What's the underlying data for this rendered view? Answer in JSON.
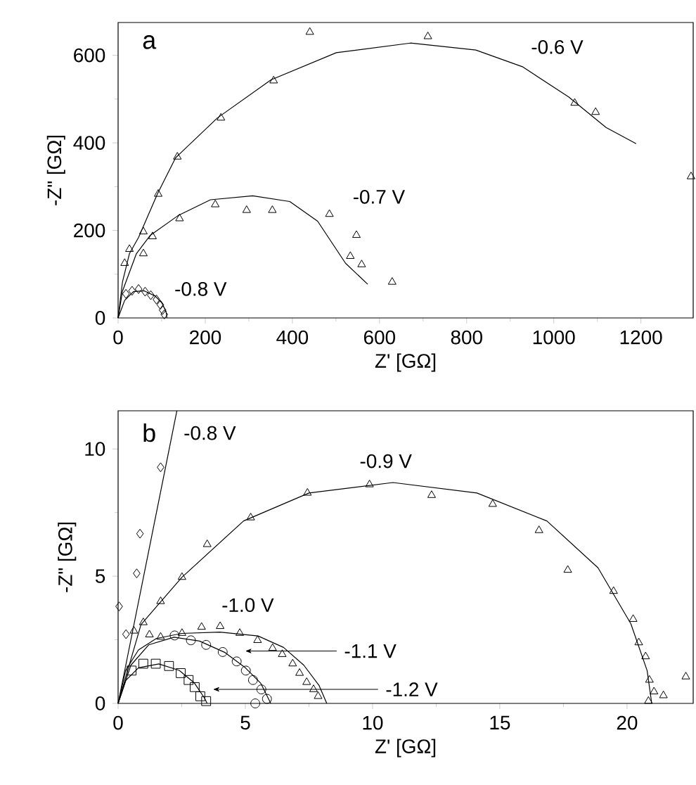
{
  "chart_data": [
    {
      "type": "scatter",
      "xlabel": "Z'  [GΩ]",
      "ylabel": "-Z\" [GΩ]",
      "xlim": [
        0,
        1320
      ],
      "ylim": [
        0,
        675
      ],
      "xticks": [
        0,
        200,
        400,
        600,
        800,
        1000,
        1200
      ],
      "yticks": [
        0,
        200,
        400,
        600
      ],
      "annotations": [
        "a",
        "-0.6 V",
        "-0.7 V",
        "-0.8 V"
      ],
      "series": [
        {
          "marker": "triangle",
          "color": "#000000",
          "x": [
            15,
            26,
            58,
            92,
            136,
            236,
            357,
            440,
            711,
            1048,
            1096,
            1315
          ],
          "values": [
            125,
            157,
            197,
            283,
            368,
            457,
            542,
            653,
            643,
            491,
            470,
            323
          ]
        },
        {
          "marker": "triangle",
          "color": "#000000",
          "x": [
            58,
            79,
            141,
            223,
            295,
            354,
            485,
            547,
            533,
            559,
            629
          ],
          "values": [
            147,
            186,
            227,
            259,
            246,
            246,
            237,
            189,
            141,
            122,
            82
          ]
        },
        {
          "marker": "diamond",
          "color": "#000000",
          "x": [
            18,
            32,
            47,
            62,
            75,
            88,
            97,
            102,
            106
          ],
          "values": [
            55,
            62,
            66,
            60,
            52,
            42,
            30,
            18,
            8
          ]
        },
        {
          "type": "line",
          "marker": "none",
          "color": "#000000",
          "x": [
            0,
            10,
            26,
            47,
            90,
            132,
            228,
            351,
            501,
            671,
            821,
            928,
            1034,
            1120,
            1189
          ],
          "values": [
            0,
            82,
            147,
            184,
            283,
            366,
            457,
            544,
            606,
            628,
            612,
            574,
            505,
            435,
            398
          ]
        },
        {
          "type": "line",
          "marker": "none",
          "color": "#000000",
          "x": [
            0,
            10,
            42,
            74,
            138,
            212,
            309,
            394,
            458,
            522,
            573
          ],
          "values": [
            0,
            61,
            147,
            189,
            234,
            270,
            279,
            266,
            221,
            125,
            77
          ]
        },
        {
          "type": "line",
          "marker": "none",
          "color": "#000000",
          "x": [
            0,
            15,
            35,
            60,
            85,
            100,
            110,
            112
          ],
          "values": [
            0,
            40,
            60,
            62,
            50,
            35,
            15,
            0
          ]
        }
      ]
    },
    {
      "type": "scatter",
      "xlabel": "Z'  [GΩ]",
      "ylabel": "-Z\" [GΩ]",
      "xlim": [
        0,
        22.6
      ],
      "ylim": [
        0,
        11.5
      ],
      "xticks": [
        0,
        5,
        10,
        15,
        20
      ],
      "yticks": [
        0,
        5,
        10
      ],
      "annotations": [
        "b",
        "-0.8 V",
        "-0.9 V",
        "-1.0 V",
        "-1.1 V",
        "-1.2 V"
      ],
      "series": [
        {
          "marker": "diamond",
          "color": "#000000",
          "x": [
            0.04,
            0.31,
            0.73,
            0.86,
            1.67
          ],
          "values": [
            3.81,
            2.72,
            5.11,
            6.67,
            9.28
          ]
        },
        {
          "marker": "triangle",
          "color": "#000000",
          "x": [
            0.62,
            0.99,
            1.67,
            2.51,
            3.5,
            5.21,
            7.44,
            9.88,
            12.32,
            14.72,
            16.54,
            17.67,
            19.47,
            20.24,
            20.46,
            20.73,
            20.88,
            21.06,
            21.43,
            22.31,
            20.84
          ],
          "values": [
            2.85,
            3.18,
            4.01,
            4.96,
            6.25,
            7.3,
            8.27,
            8.6,
            8.18,
            7.83,
            6.8,
            5.24,
            4.41,
            3.31,
            2.39,
            1.84,
            0.92,
            0.46,
            0.31,
            1.05,
            0.09
          ]
        },
        {
          "marker": "triangle",
          "color": "#000000",
          "x": [
            1.23,
            1.67,
            2.51,
            3.28,
            4.01,
            4.78,
            5.48,
            6.07,
            6.45,
            6.86,
            7.13,
            7.41,
            7.68,
            7.86
          ],
          "values": [
            2.7,
            2.61,
            2.76,
            3.0,
            3.03,
            2.76,
            2.48,
            2.17,
            1.93,
            1.56,
            1.19,
            0.83,
            0.55,
            0.28
          ]
        },
        {
          "marker": "circle",
          "color": "#000000",
          "x": [
            2.22,
            2.86,
            3.46,
            4.11,
            4.66,
            5.02,
            5.3,
            5.63,
            5.85,
            5.39
          ],
          "values": [
            2.67,
            2.48,
            2.3,
            2.02,
            1.65,
            1.29,
            0.92,
            0.55,
            0.18,
            0
          ]
        },
        {
          "marker": "square",
          "color": "#000000",
          "x": [
            0.53,
            0.99,
            1.48,
            2.0,
            2.46,
            2.77,
            3.01,
            3.23,
            3.46
          ],
          "values": [
            1.29,
            1.56,
            1.56,
            1.47,
            1.19,
            0.92,
            0.64,
            0.28,
            0.09
          ]
        },
        {
          "type": "line",
          "marker": "none",
          "color": "#000000",
          "x": [
            0,
            2.31
          ],
          "values": [
            0,
            11.5
          ]
        },
        {
          "type": "line",
          "marker": "none",
          "color": "#000000",
          "x": [
            0,
            0.9,
            2.51,
            4.93,
            7.5,
            10.8,
            14.1,
            16.85,
            18.86,
            20.15,
            20.79,
            20.97
          ],
          "values": [
            0,
            3.1,
            4.96,
            7.17,
            8.27,
            8.68,
            8.27,
            7.17,
            5.33,
            3.13,
            1.29,
            0
          ]
        },
        {
          "type": "line",
          "marker": "none",
          "color": "#000000",
          "x": [
            0,
            0.3,
            0.8,
            1.5,
            2.5,
            4,
            5.5,
            6.5,
            7.3,
            7.9,
            8.2
          ],
          "values": [
            0,
            1.3,
            2.1,
            2.55,
            2.75,
            2.8,
            2.65,
            2.2,
            1.5,
            0.7,
            0
          ]
        },
        {
          "type": "line",
          "marker": "none",
          "color": "#000000",
          "x": [
            0,
            0.5,
            1.2,
            2.2,
            3.2,
            4.2,
            5,
            5.6,
            6
          ],
          "values": [
            0,
            1.5,
            2.3,
            2.6,
            2.45,
            2.0,
            1.4,
            0.8,
            0
          ]
        },
        {
          "type": "line",
          "marker": "none",
          "color": "#000000",
          "x": [
            0,
            0.3,
            0.8,
            1.6,
            2.4,
            3.0,
            3.4,
            3.5
          ],
          "values": [
            0,
            0.9,
            1.4,
            1.55,
            1.3,
            0.8,
            0.2,
            0
          ]
        }
      ]
    }
  ]
}
